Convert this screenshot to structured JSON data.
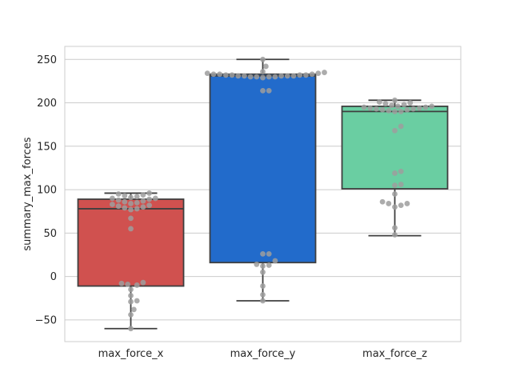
{
  "chart_data": {
    "type": "box",
    "style": "seaborn-whitegrid",
    "ylabel": "summary_max_forces",
    "xlabel": "",
    "title": "",
    "ylim": [
      -75,
      265
    ],
    "yticks": [
      -50,
      0,
      50,
      100,
      150,
      200,
      250
    ],
    "ytick_labels": [
      "−50",
      "0",
      "50",
      "100",
      "150",
      "200",
      "250"
    ],
    "grid": "horizontal",
    "categories": [
      "max_force_x",
      "max_force_y",
      "max_force_z"
    ],
    "boxes": [
      {
        "category": "max_force_x",
        "color": "#D0514F",
        "whisker_low": -60,
        "q1": -11,
        "median": 78,
        "q3": 89,
        "whisker_high": 96,
        "points": [
          96,
          95,
          94,
          93,
          92,
          91,
          90,
          90,
          89,
          88,
          87,
          86,
          85,
          84,
          83,
          82,
          81,
          80,
          79,
          78,
          77,
          67,
          55,
          -7,
          -8,
          -9,
          -10,
          -15,
          -22,
          -28,
          -29,
          -38,
          -44,
          -60
        ]
      },
      {
        "category": "max_force_y",
        "color": "#226BCB",
        "whisker_low": -28,
        "q1": 16,
        "median": 231,
        "q3": 233,
        "whisker_high": 250,
        "points": [
          250,
          242,
          236,
          235,
          234,
          234,
          233,
          233,
          233,
          232,
          232,
          232,
          232,
          231,
          231,
          231,
          231,
          231,
          230,
          230,
          230,
          230,
          229,
          214,
          214,
          26,
          26,
          18,
          14,
          13,
          12,
          5,
          -11,
          -21,
          -28
        ]
      },
      {
        "category": "max_force_z",
        "color": "#6ACEA2",
        "whisker_low": 47,
        "q1": 101,
        "median": 190,
        "q3": 196,
        "whisker_high": 203,
        "points": [
          203,
          201,
          200,
          199,
          198,
          197,
          196,
          196,
          195,
          195,
          194,
          194,
          193,
          193,
          192,
          192,
          191,
          190,
          190,
          173,
          168,
          121,
          119,
          106,
          105,
          95,
          86,
          84,
          84,
          82,
          80,
          56,
          48
        ]
      }
    ],
    "point_color": "#9E9E9E"
  }
}
